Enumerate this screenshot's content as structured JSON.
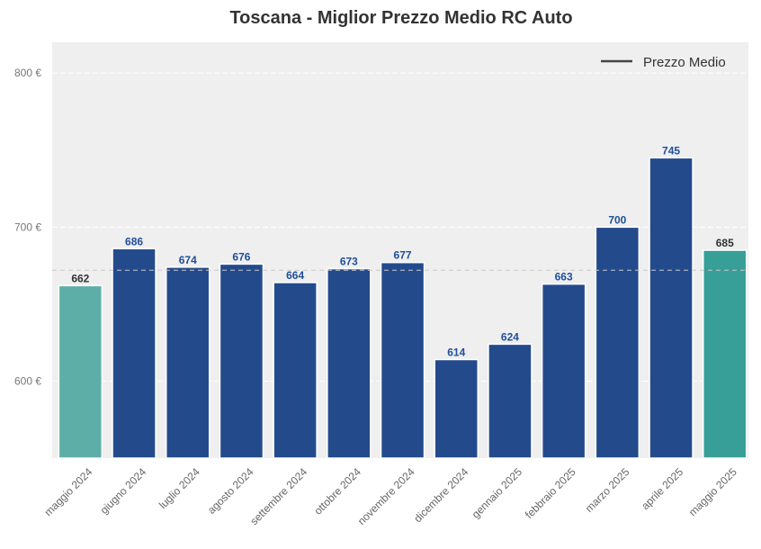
{
  "chart_data": {
    "type": "bar",
    "title": "Toscana - Miglior Prezzo Medio RC Auto",
    "xlabel": "",
    "ylabel": "",
    "categories": [
      "maggio 2024",
      "giugno 2024",
      "luglio 2024",
      "agosto 2024",
      "settembre 2024",
      "ottobre 2024",
      "novembre 2024",
      "dicembre 2024",
      "gennaio 2025",
      "febbraio 2025",
      "marzo 2025",
      "aprile 2025",
      "maggio 2025"
    ],
    "values": [
      662,
      686,
      674,
      676,
      664,
      673,
      677,
      614,
      624,
      663,
      700,
      745,
      685
    ],
    "bar_colors": [
      "#5eaea8",
      "#234b8c",
      "#234b8c",
      "#234b8c",
      "#234b8c",
      "#234b8c",
      "#234b8c",
      "#234b8c",
      "#234b8c",
      "#234b8c",
      "#234b8c",
      "#234b8c",
      "#389f98"
    ],
    "label_colors": [
      "#333333",
      "#1f4f9a",
      "#1f4f9a",
      "#1f4f9a",
      "#1f4f9a",
      "#1f4f9a",
      "#1f4f9a",
      "#1f4f9a",
      "#1f4f9a",
      "#1f4f9a",
      "#1f4f9a",
      "#1f4f9a",
      "#333333"
    ],
    "yticks": [
      600,
      700,
      800
    ],
    "ytick_labels": [
      "600 €",
      "700 €",
      "800 €"
    ],
    "ylim": [
      550,
      820
    ],
    "reference_line": {
      "value": 672,
      "style": "dashed"
    },
    "legend": {
      "label": "Prezzo Medio",
      "position": "top-right"
    },
    "grid": true,
    "background": "#efefef"
  }
}
